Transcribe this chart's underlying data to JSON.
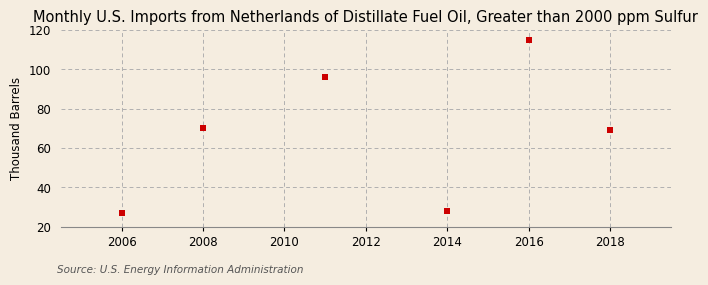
{
  "title": "Monthly U.S. Imports from Netherlands of Distillate Fuel Oil, Greater than 2000 ppm Sulfur",
  "ylabel": "Thousand Barrels",
  "source": "Source: U.S. Energy Information Administration",
  "x_data": [
    2006,
    2008,
    2011,
    2014,
    2016,
    2018
  ],
  "y_data": [
    27,
    70,
    96,
    28,
    115,
    69
  ],
  "marker_color": "#cc0000",
  "marker": "s",
  "marker_size": 4,
  "xlim": [
    2004.5,
    2019.5
  ],
  "ylim": [
    20,
    120
  ],
  "yticks": [
    20,
    40,
    60,
    80,
    100,
    120
  ],
  "xticks": [
    2006,
    2008,
    2010,
    2012,
    2014,
    2016,
    2018
  ],
  "background_color": "#f5ede0",
  "plot_bg_color": "#f5ede0",
  "grid_color": "#aaaaaa",
  "title_fontsize": 10.5,
  "label_fontsize": 8.5,
  "tick_fontsize": 8.5,
  "source_fontsize": 7.5
}
